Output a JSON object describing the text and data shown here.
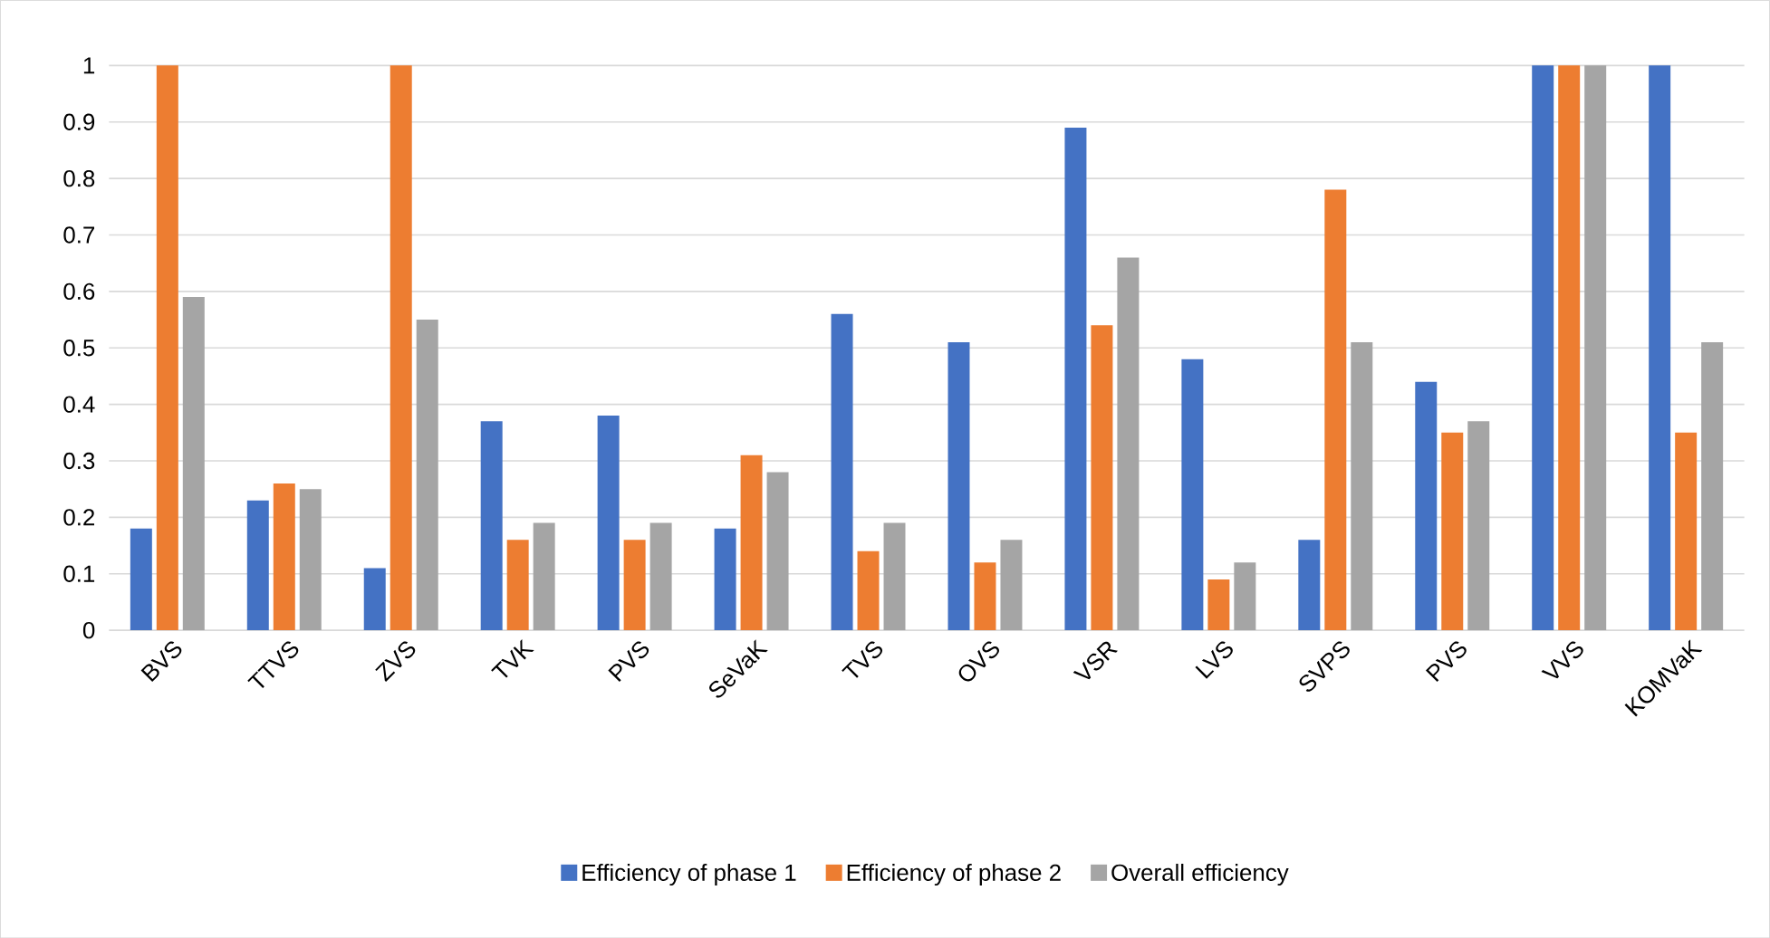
{
  "chart_data": {
    "type": "bar",
    "categories": [
      "BVS",
      "TTVS",
      "ZVS",
      "TVK",
      "PVS",
      "SeVaK",
      "TVS",
      "OVS",
      "VSR",
      "LVS",
      "SVPS",
      "PVS",
      "VVS",
      "KOMVaK"
    ],
    "series": [
      {
        "name": "Efficiency of phase 1",
        "color": "#4472c4",
        "values": [
          0.18,
          0.23,
          0.11,
          0.37,
          0.38,
          0.18,
          0.56,
          0.51,
          0.89,
          0.48,
          0.16,
          0.44,
          1,
          1
        ]
      },
      {
        "name": "Efficiency of phase 2",
        "color": "#ed7d31",
        "values": [
          1,
          0.26,
          1,
          0.16,
          0.16,
          0.31,
          0.14,
          0.12,
          0.54,
          0.09,
          0.78,
          0.35,
          1,
          0.35
        ]
      },
      {
        "name": "Overall efficiency",
        "color": "#a5a5a5",
        "values": [
          0.59,
          0.25,
          0.55,
          0.19,
          0.19,
          0.28,
          0.19,
          0.16,
          0.66,
          0.12,
          0.51,
          0.37,
          1,
          0.51
        ]
      }
    ],
    "ylim": [
      0,
      1
    ],
    "yticks": [
      0,
      0.1,
      0.2,
      0.3,
      0.4,
      0.5,
      0.6,
      0.7,
      0.8,
      0.9,
      1
    ],
    "grid": "y",
    "legend": "bottom"
  }
}
